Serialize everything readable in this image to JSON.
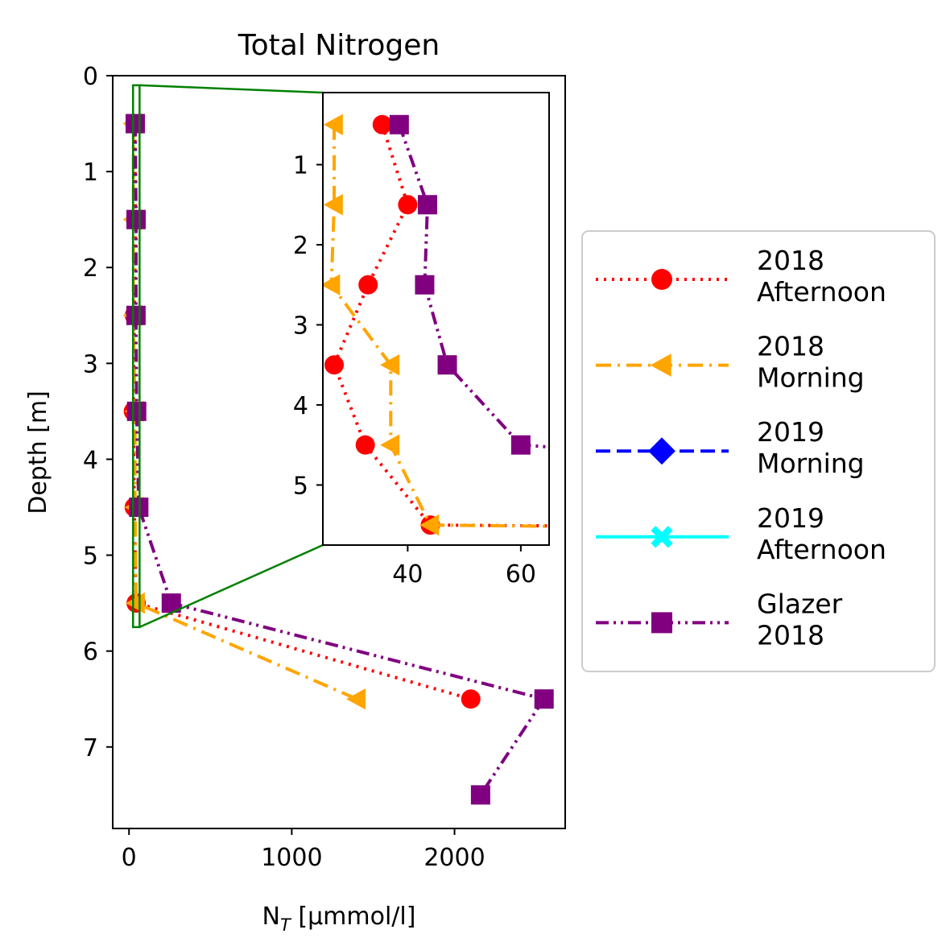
{
  "chart_data": {
    "type": "line",
    "title": "Total Nitrogen",
    "xlabel_main": "N",
    "xlabel_sub": "T",
    "xlabel_rest": " [µmmol/l]",
    "ylabel": "Depth [m]",
    "xlim": [
      -100,
      2680
    ],
    "ylim": [
      7.85,
      0
    ],
    "xticks": [
      0,
      1000,
      2000
    ],
    "xtick_labels": [
      "0",
      "1000",
      "2000"
    ],
    "yticks": [
      0,
      1,
      2,
      3,
      4,
      5,
      6,
      7
    ],
    "ytick_labels": [
      "0",
      "1",
      "2",
      "3",
      "4",
      "5",
      "6",
      "7"
    ],
    "grid": false,
    "legend_position": "right",
    "series": [
      {
        "name": "2018\nAfternoon",
        "color": "#ff0000",
        "linestyle": "dotted",
        "marker": "circle",
        "x": [
          35.5,
          40,
          33,
          27,
          32.5,
          44,
          2100
        ],
        "y": [
          0.5,
          1.5,
          2.5,
          3.5,
          4.5,
          5.5,
          6.5
        ]
      },
      {
        "name": "2018\nMorning",
        "color": "#ffa500",
        "linestyle": "dashdot",
        "marker": "triangle-left",
        "x": [
          27,
          27,
          26.5,
          37,
          37,
          44,
          1400
        ],
        "y": [
          0.5,
          1.5,
          2.5,
          3.5,
          4.5,
          5.5,
          6.5
        ]
      },
      {
        "name": "2019\nMorning",
        "color": "#0000ff",
        "linestyle": "dashed",
        "marker": "diamond",
        "x": [],
        "y": []
      },
      {
        "name": "2019\nAfternoon",
        "color": "#00ffff",
        "linestyle": "solid",
        "marker": "x-filled",
        "x": [],
        "y": []
      },
      {
        "name": "Glazer\n2018",
        "color": "#800080",
        "linestyle": "dashdotdot",
        "marker": "square",
        "x": [
          38.5,
          43.5,
          43,
          47,
          60,
          260,
          2550,
          2160
        ],
        "y": [
          0.5,
          1.5,
          2.5,
          3.5,
          4.5,
          5.5,
          6.5,
          7.5
        ]
      }
    ],
    "inset": {
      "xlim": [
        25,
        65
      ],
      "ylim": [
        5.75,
        0.1
      ],
      "xticks": [
        40,
        60
      ],
      "xtick_labels": [
        "40",
        "60"
      ],
      "yticks": [
        1,
        2,
        3,
        4,
        5
      ],
      "ytick_labels": [
        "1",
        "2",
        "3",
        "4",
        "5"
      ],
      "zoom_box": {
        "xlim": [
          25,
          65
        ],
        "ylim": [
          0.1,
          5.75
        ]
      },
      "indicator_color": "#008000"
    }
  }
}
